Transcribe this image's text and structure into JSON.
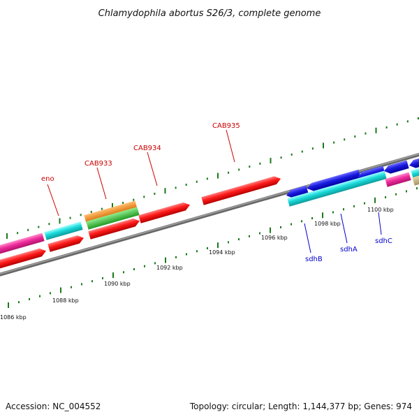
{
  "title": "Chlamydophila abortus S26/3, complete genome",
  "footer": {
    "accession": "Accession: NC_004552",
    "summary": "Topology: circular; Length: 1,144,377 bp; Genes: 974"
  },
  "ruler": {
    "tick_labels": [
      "1086 kbp",
      "1088 kbp",
      "1090 kbp",
      "1092 kbp",
      "1094 kbp",
      "1096 kbp",
      "1098 kbp",
      "1100 kbp"
    ]
  },
  "gene_labels": {
    "forward_color": "#cc0000",
    "reverse_color": "#0000cc",
    "items": [
      {
        "name": "eno",
        "strand": "forward"
      },
      {
        "name": "CAB933",
        "strand": "forward"
      },
      {
        "name": "CAB934",
        "strand": "forward"
      },
      {
        "name": "CAB935",
        "strand": "forward"
      },
      {
        "name": "sdhB",
        "strand": "reverse"
      },
      {
        "name": "sdhA",
        "strand": "reverse"
      },
      {
        "name": "sdhC",
        "strand": "reverse"
      }
    ]
  },
  "colors": {
    "red": "#ff1a1a",
    "blue": "#1a1adf",
    "cyan": "#19dada",
    "magenta": "#ee2b9b",
    "orange": "#f58a16",
    "green": "#3cc43c",
    "tick": "#1a7a1a",
    "backbone": "#808080"
  }
}
